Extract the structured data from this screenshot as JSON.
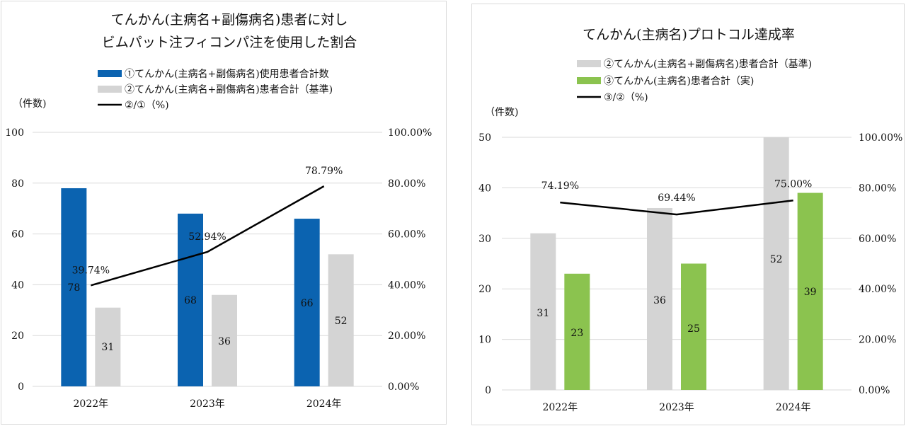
{
  "chart_data": [
    {
      "type": "bar",
      "title_lines": [
        "てんかん(主病名+副傷病名)患者に対し",
        "ビムパット注フィコンパ注を使用した割合"
      ],
      "legend": [
        {
          "label": "①てんかん(主病名+副傷病名)使用患者合計数",
          "color": "#0b63b0",
          "kind": "bar"
        },
        {
          "label": "②てんかん(主病名+副傷病名)患者合計（基準)",
          "color": "#d4d4d4",
          "kind": "bar"
        },
        {
          "label": "②/①（%)",
          "color": "#000000",
          "kind": "line"
        }
      ],
      "ylabel": "（件数)",
      "categories": [
        "2022年",
        "2023年",
        "2024年"
      ],
      "ylim": [
        0,
        100
      ],
      "y_ticks": [
        "0",
        "20",
        "40",
        "60",
        "80",
        "100"
      ],
      "y2lim": [
        0,
        100
      ],
      "y2_ticks": [
        "0.00%",
        "20.00%",
        "40.00%",
        "60.00%",
        "80.00%",
        "100.00%"
      ],
      "series": [
        {
          "name": "①てんかん(主病名+副傷病名)使用患者合計数",
          "values": [
            78,
            68,
            66
          ],
          "labels": [
            "78",
            "68",
            "66"
          ],
          "color": "#0b63b0"
        },
        {
          "name": "②てんかん(主病名+副傷病名)患者合計（基準)",
          "values": [
            31,
            36,
            52
          ],
          "labels": [
            "31",
            "36",
            "52"
          ],
          "color": "#d4d4d4"
        }
      ],
      "line_series": {
        "name": "②/①（%)",
        "values": [
          39.74,
          52.94,
          78.79
        ],
        "labels": [
          "39.74%",
          "52.94%",
          "78.79%"
        ],
        "color": "#000000"
      },
      "grid": true
    },
    {
      "type": "bar",
      "title_lines": [
        "てんかん(主病名)プロトコル達成率"
      ],
      "legend": [
        {
          "label": "②てんかん(主病名+副傷病名)患者合計（基準)",
          "color": "#d4d4d4",
          "kind": "bar"
        },
        {
          "label": "③てんかん(主病名)患者合計（実)",
          "color": "#8bc34f",
          "kind": "bar"
        },
        {
          "label": "③/②（%)",
          "color": "#000000",
          "kind": "line"
        }
      ],
      "ylabel": "（件数)",
      "categories": [
        "2022年",
        "2023年",
        "2024年"
      ],
      "ylim": [
        0,
        50
      ],
      "y_ticks": [
        "0",
        "10",
        "20",
        "30",
        "40",
        "50"
      ],
      "y2lim": [
        0,
        100
      ],
      "y2_ticks": [
        "0.00%",
        "20.00%",
        "40.00%",
        "60.00%",
        "80.00%",
        "100.00%"
      ],
      "series": [
        {
          "name": "②てんかん(主病名+副傷病名)患者合計（基準)",
          "values": [
            31,
            36,
            52
          ],
          "labels": [
            "31",
            "36",
            "52"
          ],
          "color": "#d4d4d4"
        },
        {
          "name": "③てんかん(主病名)患者合計（実)",
          "values": [
            23,
            25,
            39
          ],
          "labels": [
            "23",
            "25",
            "39"
          ],
          "color": "#8bc34f"
        }
      ],
      "line_series": {
        "name": "③/②（%)",
        "values": [
          74.19,
          69.44,
          75.0
        ],
        "labels": [
          "74.19%",
          "69.44%",
          "75.00%"
        ],
        "color": "#000000"
      },
      "grid": true
    }
  ]
}
